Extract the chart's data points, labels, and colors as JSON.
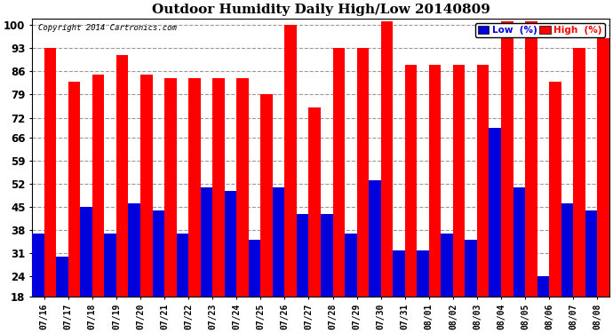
{
  "title": "Outdoor Humidity Daily High/Low 20140809",
  "copyright": "Copyright 2014 Cartronics.com",
  "dates": [
    "07/16",
    "07/17",
    "07/18",
    "07/19",
    "07/20",
    "07/21",
    "07/22",
    "07/23",
    "07/24",
    "07/25",
    "07/26",
    "07/27",
    "07/28",
    "07/29",
    "07/30",
    "07/31",
    "08/01",
    "08/02",
    "08/03",
    "08/04",
    "08/05",
    "08/06",
    "08/07",
    "08/08"
  ],
  "high": [
    93,
    83,
    85,
    91,
    85,
    84,
    84,
    84,
    84,
    79,
    100,
    75,
    93,
    93,
    101,
    88,
    88,
    88,
    88,
    101,
    101,
    83,
    93,
    96
  ],
  "low": [
    37,
    30,
    45,
    37,
    46,
    44,
    37,
    51,
    50,
    35,
    51,
    43,
    43,
    37,
    53,
    32,
    32,
    37,
    35,
    69,
    51,
    24,
    46,
    44
  ],
  "high_color": "#ff0000",
  "low_color": "#0000dd",
  "background_color": "#ffffff",
  "plot_bg_color": "#ffffff",
  "grid_color": "#999999",
  "ymin": 18,
  "ymax": 102,
  "yticks": [
    18,
    24,
    31,
    38,
    45,
    52,
    59,
    66,
    72,
    79,
    86,
    93,
    100
  ],
  "legend_low_label": "Low  (%)",
  "legend_high_label": "High  (%)"
}
